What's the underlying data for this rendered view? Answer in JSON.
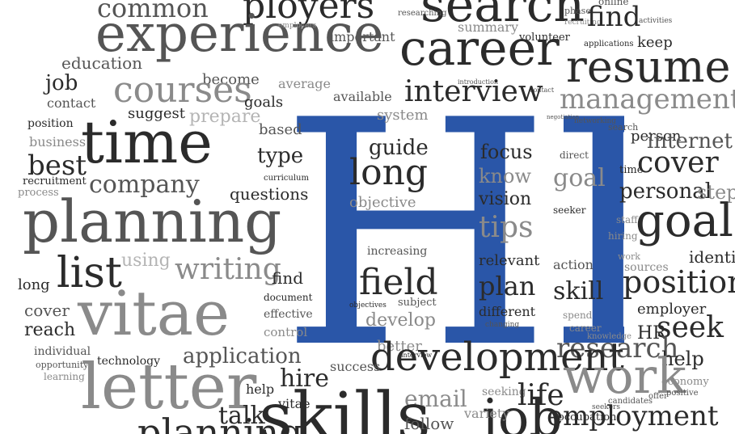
{
  "cloud": {
    "center_word": "HR",
    "center_color": "#2a56a8",
    "words": [
      "common",
      "ployers",
      "search",
      "online",
      "activities",
      "researching",
      "phase",
      "recruiting",
      "find",
      "keep",
      "experience",
      "employers",
      "important",
      "summary",
      "volunteer",
      "applications",
      "career",
      "resume",
      "education",
      "job",
      "become",
      "average",
      "available",
      "introduction",
      "contact",
      "interview",
      "courses",
      "contact",
      "goals",
      "management",
      "position",
      "suggest",
      "prepare",
      "system",
      "negotiation",
      "networking",
      "search",
      "person",
      "based",
      "business",
      "time",
      "guide",
      "focus",
      "direct",
      "internet",
      "type",
      "best",
      "cover",
      "recruitment",
      "curriculum",
      "long",
      "know",
      "goal",
      "time",
      "process",
      "company",
      "questions",
      "personal",
      "step",
      "planning",
      "objective",
      "vision",
      "seeker",
      "staff",
      "goals",
      "list",
      "tips",
      "hiring",
      "using",
      "writing",
      "increasing",
      "relevant",
      "action",
      "work",
      "identify",
      "long",
      "field",
      "find",
      "plan",
      "sources",
      "position",
      "cover",
      "document",
      "objectives",
      "subject",
      "skill",
      "employer",
      "vitae",
      "effective",
      "develop",
      "different",
      "spend",
      "reach",
      "control",
      "changing",
      "career",
      "HR",
      "seek",
      "individual",
      "technology",
      "better",
      "knowledge",
      "opportunity",
      "application",
      "interview",
      "research",
      "help",
      "learning",
      "development",
      "success",
      "work",
      "letter",
      "help",
      "hire",
      "economy",
      "talk",
      "vitae",
      "email",
      "seeking",
      "life",
      "offer",
      "positive",
      "skills",
      "job",
      "variety",
      "follow",
      "occupation",
      "seekers",
      "candidates",
      "employment",
      "planning"
    ]
  }
}
